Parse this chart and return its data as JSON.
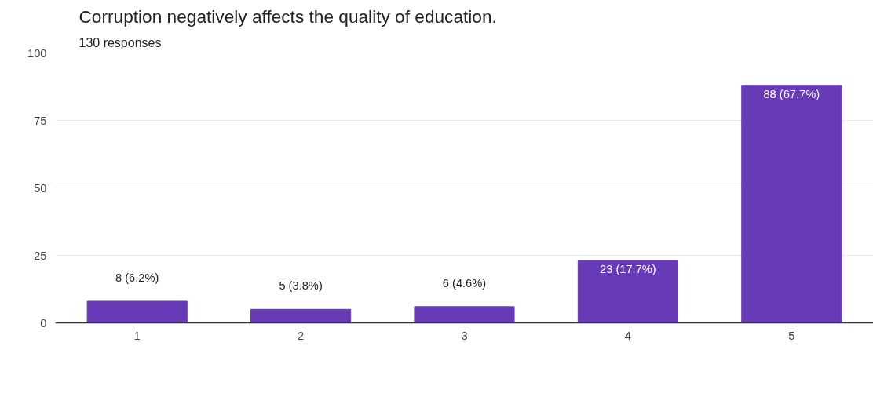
{
  "chart_data": {
    "type": "bar",
    "title": "Corruption negatively affects the quality of education.",
    "subtitle": "130 responses",
    "categories": [
      "1",
      "2",
      "3",
      "4",
      "5"
    ],
    "values": [
      8,
      5,
      6,
      23,
      88
    ],
    "value_labels": [
      "8 (6.2%)",
      "5 (3.8%)",
      "6 (4.6%)",
      "23 (17.7%)",
      "88 (67.7%)"
    ],
    "color": "#673ab7",
    "ylim": [
      0,
      100
    ],
    "yticks": [
      0,
      25,
      50,
      75,
      100
    ],
    "grid": "y"
  }
}
